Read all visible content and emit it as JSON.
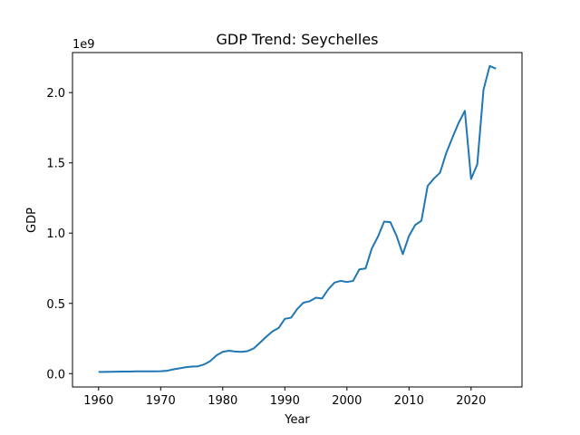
{
  "chart_data": {
    "type": "line",
    "title": "GDP Trend: Seychelles",
    "xlabel": "Year",
    "ylabel": "GDP",
    "offset_label": "1e9",
    "xlim": [
      1955.8,
      2028.2
    ],
    "ylim": [
      -0.095,
      2.285
    ],
    "x_ticks": [
      1960,
      1970,
      1980,
      1990,
      2000,
      2010,
      2020
    ],
    "x_tick_labels": [
      "1960",
      "1970",
      "1980",
      "1990",
      "2000",
      "2010",
      "2020"
    ],
    "y_ticks": [
      0.0,
      0.5,
      1.0,
      1.5,
      2.0
    ],
    "y_tick_labels": [
      "0.0",
      "0.5",
      "1.0",
      "1.5",
      "2.0"
    ],
    "grid": false,
    "line_color": "#1f77b4",
    "series": [
      {
        "x": [
          1960,
          1961,
          1962,
          1963,
          1964,
          1965,
          1966,
          1967,
          1968,
          1969,
          1970,
          1971,
          1972,
          1973,
          1974,
          1975,
          1976,
          1977,
          1978,
          1979,
          1980,
          1981,
          1982,
          1983,
          1984,
          1985,
          1986,
          1987,
          1988,
          1989,
          1990,
          1991,
          1992,
          1993,
          1994,
          1995,
          1996,
          1997,
          1998,
          1999,
          2000,
          2001,
          2002,
          2003,
          2004,
          2005,
          2006,
          2007,
          2008,
          2009,
          2010,
          2011,
          2012,
          2013,
          2014,
          2015,
          2016,
          2017,
          2018,
          2019,
          2020,
          2021,
          2022,
          2023,
          2024
        ],
        "y": [
          0.012,
          0.012,
          0.013,
          0.014,
          0.015,
          0.015,
          0.016,
          0.016,
          0.016,
          0.016,
          0.017,
          0.02,
          0.03,
          0.037,
          0.045,
          0.05,
          0.052,
          0.065,
          0.09,
          0.13,
          0.155,
          0.163,
          0.157,
          0.155,
          0.16,
          0.18,
          0.22,
          0.262,
          0.3,
          0.325,
          0.39,
          0.398,
          0.46,
          0.505,
          0.515,
          0.54,
          0.535,
          0.6,
          0.648,
          0.66,
          0.652,
          0.66,
          0.742,
          0.748,
          0.89,
          0.975,
          1.082,
          1.078,
          0.98,
          0.85,
          0.98,
          1.058,
          1.088,
          1.335,
          1.388,
          1.43,
          1.57,
          1.68,
          1.785,
          1.87,
          1.385,
          1.49,
          2.02,
          2.19,
          2.17
        ]
      }
    ]
  }
}
